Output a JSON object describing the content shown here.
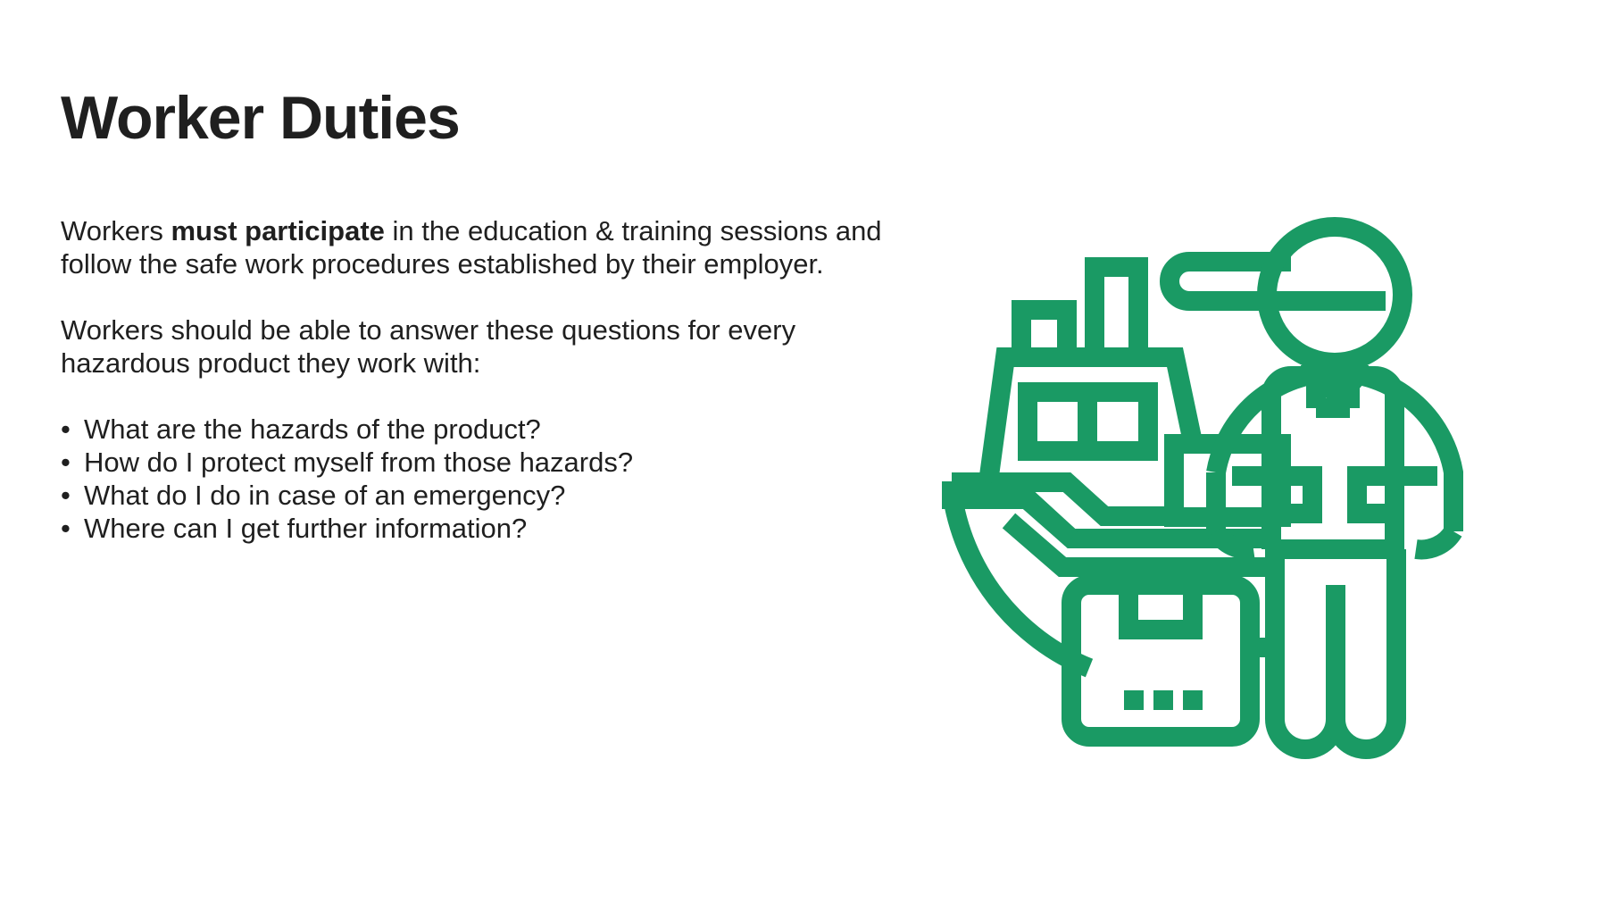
{
  "slide": {
    "title": "Worker Duties",
    "paragraph1": {
      "before": "Workers ",
      "emphasis": "must participate",
      "after": " in the education & training sessions and follow the safe work procedures established by their employer."
    },
    "paragraph2": "Workers should be able to answer these questions for every hazardous product they work with:",
    "questions": [
      "What are the hazards of the product?",
      "How do I protect myself from those hazards?",
      "What do I do in case of an emergency?",
      "Where can I get further information?"
    ]
  },
  "illustration": {
    "icon": "delivery-worker-ship-icon",
    "color": "#1a9a64"
  }
}
